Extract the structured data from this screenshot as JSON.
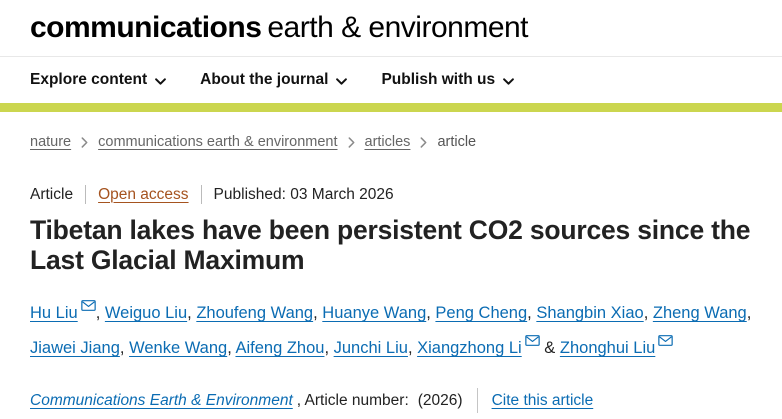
{
  "colors": {
    "accent_bar": "#cbd64f",
    "link_blue": "#0b6cb3",
    "open_access_rust": "#a5531f",
    "breadcrumb_gray": "#666666",
    "text_dark": "#222222"
  },
  "header": {
    "logo_bold": "communications",
    "logo_light": "earth & environment"
  },
  "nav": {
    "items": [
      {
        "label": "Explore content"
      },
      {
        "label": "About the journal"
      },
      {
        "label": "Publish with us"
      }
    ]
  },
  "breadcrumb": {
    "items": [
      {
        "label": "nature",
        "link": true
      },
      {
        "label": "communications earth & environment",
        "link": true
      },
      {
        "label": "articles",
        "link": true
      },
      {
        "label": "article",
        "link": false
      }
    ]
  },
  "article": {
    "type_label": "Article",
    "access_label": "Open access",
    "published_label": "Published: 03 March 2026",
    "title": "Tibetan lakes have been persistent CO2 sources since the Last Glacial Maximum",
    "authors": [
      {
        "name": "Hu Liu",
        "email": true
      },
      {
        "name": "Weiguo Liu",
        "email": false
      },
      {
        "name": "Zhoufeng Wang",
        "email": false
      },
      {
        "name": "Huanye Wang",
        "email": false
      },
      {
        "name": "Peng Cheng",
        "email": false
      },
      {
        "name": "Shangbin Xiao",
        "email": false
      },
      {
        "name": "Zheng Wang",
        "email": false
      },
      {
        "name": "Jiawei Jiang",
        "email": false
      },
      {
        "name": "Wenke Wang",
        "email": false
      },
      {
        "name": "Aifeng Zhou",
        "email": false
      },
      {
        "name": "Junchi Liu",
        "email": false
      },
      {
        "name": "Xiangzhong Li",
        "email": true
      },
      {
        "name": "Zhonghui Liu",
        "email": true
      }
    ],
    "citation": {
      "journal": "Communications Earth & Environment",
      "article_number_label": ", Article number:",
      "article_number_value": "(2026)",
      "cite_label": "Cite this article"
    }
  }
}
